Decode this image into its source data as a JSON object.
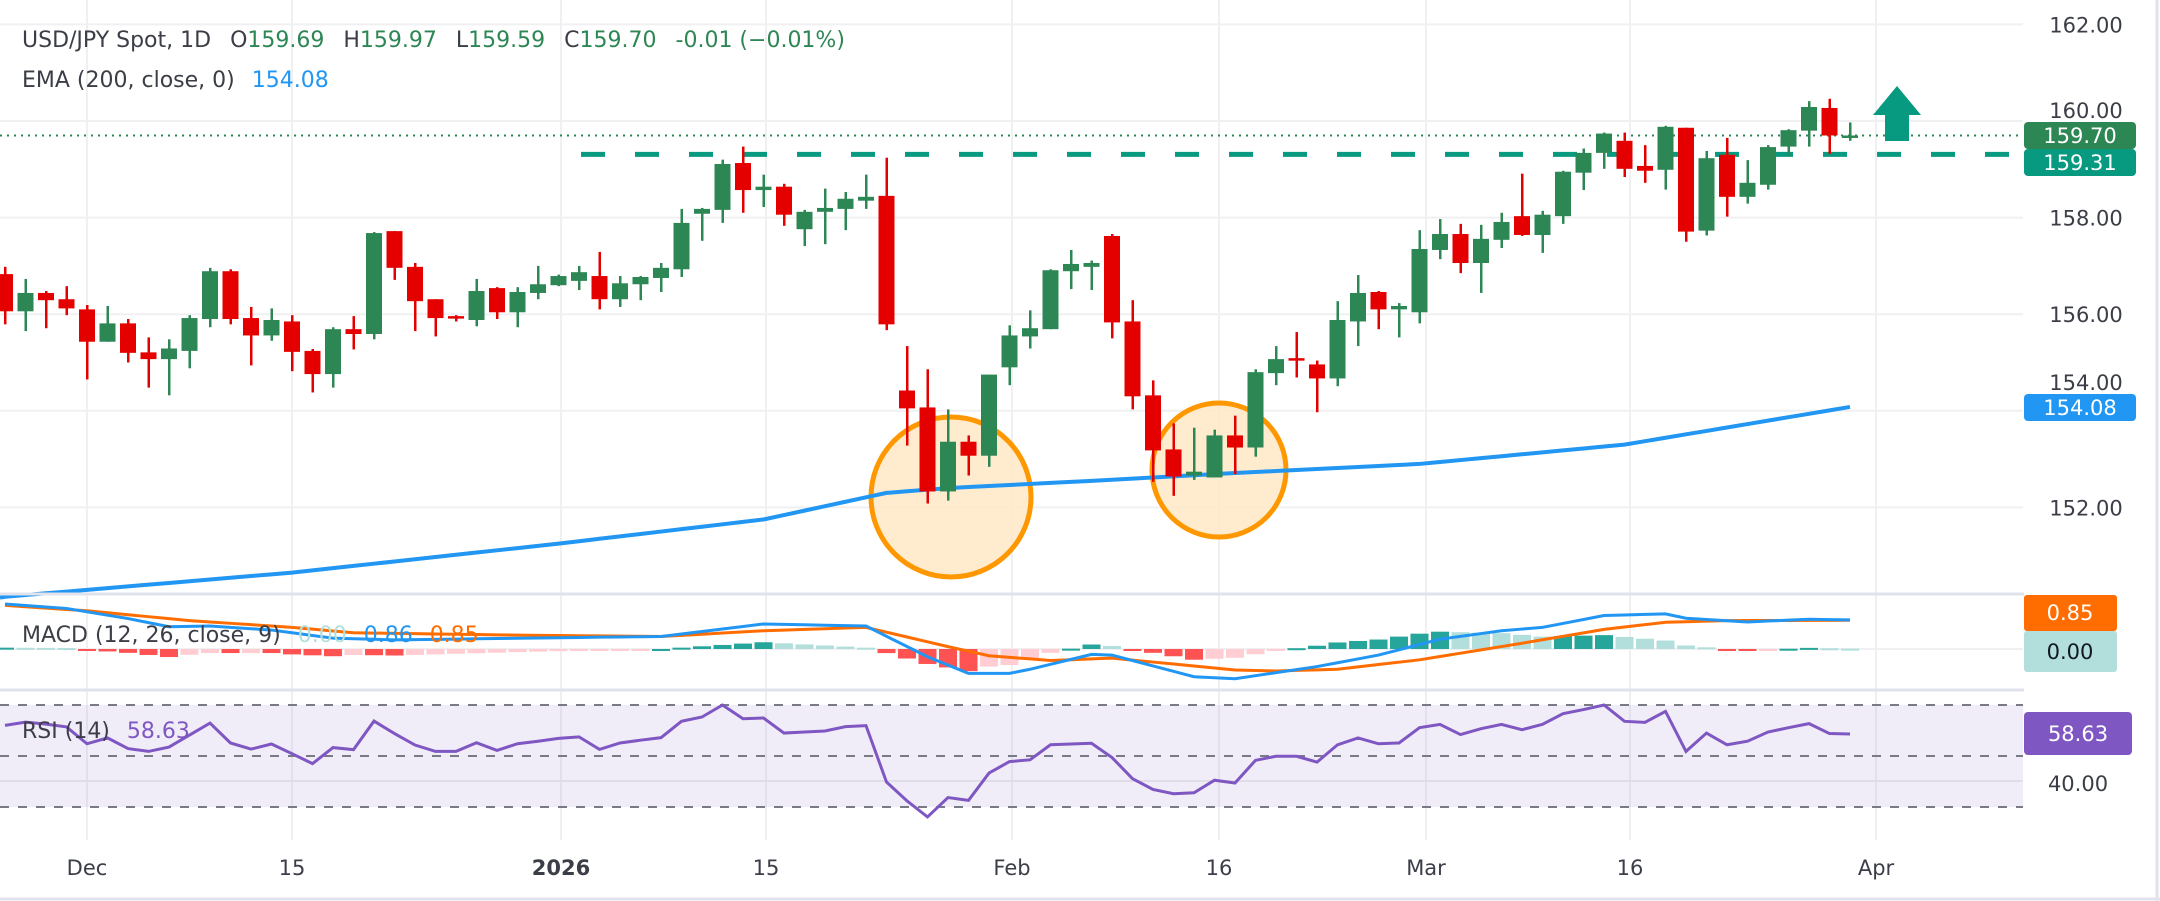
{
  "legend": {
    "symbol": "USD/JPY Spot, 1D",
    "o_label": "O",
    "o": "159.69",
    "h_label": "H",
    "h": "159.97",
    "l_label": "L",
    "l": "159.59",
    "c_label": "C",
    "c": "159.70",
    "change": "-0.01 (−0.01%)",
    "ema_label": "EMA (200, close, 0)",
    "ema_value": "154.08",
    "macd_label": "MACD (12, 26, close, 9)",
    "macd_hist": "0.00",
    "macd_line": "0.86",
    "macd_signal": "0.85",
    "rsi_label": "RSI (14)",
    "rsi_value": "58.63"
  },
  "colors": {
    "up": "#2d8754",
    "down": "#e50000",
    "ema": "#2196f3",
    "level": "#089981",
    "circle": "#ff9800",
    "macd": "#2196f3",
    "signal": "#ff6d00",
    "rsi": "#7e57c2",
    "hist_up_strong": "#26a69a",
    "hist_up_weak": "#b2dfdb",
    "hist_down_strong": "#ff5252",
    "hist_down_weak": "#ffcdd2"
  },
  "price_axis": {
    "ticks": [
      "162.00",
      "160.00",
      "158.00",
      "156.00",
      "154.00",
      "152.00"
    ],
    "last_price": "159.70",
    "level": "159.31",
    "ema": "154.08"
  },
  "macd_axis": {
    "signal": "0.85",
    "hist": "0.00"
  },
  "rsi_axis": {
    "tick": "40.00",
    "value": "58.63"
  },
  "time_axis": [
    "Dec",
    "15",
    "2026",
    "15",
    "Feb",
    "16",
    "Mar",
    "16",
    "Apr"
  ],
  "chart_data": {
    "type": "candlestick",
    "symbol": "USD/JPY Spot",
    "interval": "1D",
    "ylim": [
      150.5,
      162.4
    ],
    "grid": true,
    "columns": [
      "date",
      "open",
      "high",
      "low",
      "close"
    ],
    "candles": [
      [
        "2025-11-25",
        156.83,
        156.98,
        155.79,
        156.06
      ],
      [
        "2025-11-26",
        156.06,
        156.73,
        155.65,
        156.44
      ],
      [
        "2025-11-27",
        156.44,
        156.48,
        155.71,
        156.29
      ],
      [
        "2025-11-28",
        156.31,
        156.58,
        155.98,
        156.12
      ],
      [
        "2025-12-01",
        156.1,
        156.19,
        154.65,
        155.43
      ],
      [
        "2025-12-02",
        155.43,
        156.17,
        155.43,
        155.81
      ],
      [
        "2025-12-03",
        155.81,
        155.9,
        155.0,
        155.2
      ],
      [
        "2025-12-04",
        155.21,
        155.52,
        154.48,
        155.07
      ],
      [
        "2025-12-05",
        155.07,
        155.48,
        154.32,
        155.29
      ],
      [
        "2025-12-08",
        155.24,
        155.98,
        154.88,
        155.92
      ],
      [
        "2025-12-09",
        155.9,
        156.96,
        155.73,
        156.89
      ],
      [
        "2025-12-10",
        156.89,
        156.93,
        155.79,
        155.9
      ],
      [
        "2025-12-11",
        155.92,
        156.15,
        154.94,
        155.56
      ],
      [
        "2025-12-12",
        155.56,
        156.12,
        155.45,
        155.88
      ],
      [
        "2025-12-15",
        155.85,
        155.98,
        154.82,
        155.22
      ],
      [
        "2025-12-16",
        155.24,
        155.28,
        154.38,
        154.76
      ],
      [
        "2025-12-17",
        154.76,
        155.73,
        154.48,
        155.69
      ],
      [
        "2025-12-18",
        155.69,
        155.96,
        155.27,
        155.59
      ],
      [
        "2025-12-19",
        155.59,
        157.7,
        155.48,
        157.68
      ],
      [
        "2025-12-22",
        157.72,
        157.72,
        156.71,
        156.96
      ],
      [
        "2025-12-23",
        156.98,
        157.06,
        155.65,
        156.27
      ],
      [
        "2025-12-24",
        156.31,
        156.31,
        155.54,
        155.92
      ],
      [
        "2025-12-25",
        155.96,
        155.98,
        155.85,
        155.92
      ],
      [
        "2025-12-26",
        155.88,
        156.73,
        155.75,
        156.48
      ],
      [
        "2025-12-29",
        156.54,
        156.56,
        155.9,
        156.04
      ],
      [
        "2025-12-30",
        156.04,
        156.56,
        155.73,
        156.46
      ],
      [
        "2025-12-31",
        156.44,
        157.0,
        156.31,
        156.62
      ],
      [
        "2026-01-01",
        156.6,
        156.82,
        156.58,
        156.79
      ],
      [
        "2026-01-02",
        156.69,
        157.0,
        156.5,
        156.87
      ],
      [
        "2026-01-05",
        156.79,
        157.29,
        156.1,
        156.31
      ],
      [
        "2026-01-06",
        156.31,
        156.79,
        156.15,
        156.64
      ],
      [
        "2026-01-07",
        156.62,
        156.79,
        156.29,
        156.77
      ],
      [
        "2026-01-08",
        156.75,
        157.06,
        156.46,
        156.96
      ],
      [
        "2026-01-09",
        156.93,
        158.18,
        156.77,
        157.89
      ],
      [
        "2026-01-12",
        158.08,
        158.2,
        157.52,
        158.18
      ],
      [
        "2026-01-13",
        158.16,
        159.2,
        157.89,
        159.11
      ],
      [
        "2026-01-14",
        159.13,
        159.47,
        158.1,
        158.57
      ],
      [
        "2026-01-15",
        158.57,
        158.89,
        158.22,
        158.64
      ],
      [
        "2026-01-16",
        158.64,
        158.7,
        157.83,
        158.06
      ],
      [
        "2026-01-19",
        157.76,
        158.16,
        157.41,
        158.12
      ],
      [
        "2026-01-20",
        158.12,
        158.6,
        157.45,
        158.2
      ],
      [
        "2026-01-21",
        158.18,
        158.53,
        157.74,
        158.39
      ],
      [
        "2026-01-22",
        158.35,
        158.89,
        158.18,
        158.43
      ],
      [
        "2026-01-23",
        158.45,
        159.24,
        155.67,
        155.79
      ],
      [
        "2026-01-26",
        154.42,
        155.34,
        153.28,
        154.05
      ],
      [
        "2026-01-27",
        154.07,
        154.86,
        152.08,
        152.33
      ],
      [
        "2026-01-28",
        152.33,
        154.03,
        152.14,
        153.36
      ],
      [
        "2026-01-29",
        153.36,
        153.49,
        152.66,
        153.07
      ],
      [
        "2026-01-30",
        153.07,
        154.75,
        152.84,
        154.75
      ],
      [
        "2026-02-02",
        154.9,
        155.77,
        154.53,
        155.56
      ],
      [
        "2026-02-03",
        155.54,
        156.08,
        155.29,
        155.71
      ],
      [
        "2026-02-04",
        155.69,
        156.93,
        155.69,
        156.91
      ],
      [
        "2026-02-05",
        156.89,
        157.33,
        156.52,
        157.04
      ],
      [
        "2026-02-06",
        156.98,
        157.11,
        156.5,
        157.06
      ],
      [
        "2026-02-09",
        157.62,
        157.66,
        155.5,
        155.83
      ],
      [
        "2026-02-10",
        155.85,
        156.29,
        154.03,
        154.3
      ],
      [
        "2026-02-11",
        154.32,
        154.63,
        152.53,
        153.18
      ],
      [
        "2026-02-12",
        153.2,
        153.74,
        152.24,
        152.64
      ],
      [
        "2026-02-13",
        152.66,
        153.65,
        152.57,
        152.74
      ],
      [
        "2026-02-16",
        152.62,
        153.61,
        152.62,
        153.49
      ],
      [
        "2026-02-17",
        153.49,
        153.9,
        152.69,
        153.24
      ],
      [
        "2026-02-18",
        153.24,
        154.86,
        153.05,
        154.8
      ],
      [
        "2026-02-19",
        154.78,
        155.34,
        154.53,
        155.07
      ],
      [
        "2026-02-20",
        155.09,
        155.63,
        154.69,
        155.04
      ],
      [
        "2026-02-23",
        154.96,
        155.04,
        153.97,
        154.67
      ],
      [
        "2026-02-24",
        154.67,
        156.27,
        154.51,
        155.88
      ],
      [
        "2026-02-25",
        155.85,
        156.81,
        155.34,
        156.44
      ],
      [
        "2026-02-26",
        156.46,
        156.48,
        155.69,
        156.1
      ],
      [
        "2026-02-27",
        156.1,
        156.23,
        155.52,
        156.17
      ],
      [
        "2026-03-02",
        156.04,
        157.74,
        155.81,
        157.35
      ],
      [
        "2026-03-03",
        157.33,
        157.97,
        157.14,
        157.66
      ],
      [
        "2026-03-04",
        157.66,
        157.87,
        156.85,
        157.06
      ],
      [
        "2026-03-05",
        157.06,
        157.85,
        156.44,
        157.56
      ],
      [
        "2026-03-06",
        157.54,
        158.1,
        157.37,
        157.91
      ],
      [
        "2026-03-09",
        158.03,
        158.91,
        157.62,
        157.64
      ],
      [
        "2026-03-10",
        157.64,
        158.14,
        157.27,
        158.06
      ],
      [
        "2026-03-11",
        158.03,
        158.97,
        157.87,
        158.95
      ],
      [
        "2026-03-12",
        158.93,
        159.43,
        158.57,
        159.34
      ],
      [
        "2026-03-13",
        159.34,
        159.76,
        159.01,
        159.74
      ],
      [
        "2026-03-16",
        159.59,
        159.76,
        158.84,
        159.01
      ],
      [
        "2026-03-17",
        159.07,
        159.5,
        158.72,
        158.97
      ],
      [
        "2026-03-18",
        158.99,
        159.9,
        158.58,
        159.88
      ],
      [
        "2026-03-19",
        159.86,
        159.86,
        157.5,
        157.71
      ],
      [
        "2026-03-20",
        157.73,
        159.38,
        157.63,
        159.23
      ],
      [
        "2026-03-23",
        159.3,
        159.65,
        158.02,
        158.43
      ],
      [
        "2026-03-24",
        158.43,
        159.19,
        158.29,
        158.72
      ],
      [
        "2026-03-25",
        158.68,
        159.5,
        158.58,
        159.46
      ],
      [
        "2026-03-26",
        159.47,
        159.83,
        159.28,
        159.81
      ],
      [
        "2026-03-27",
        159.8,
        160.41,
        159.47,
        160.29
      ],
      [
        "2026-03-30",
        160.27,
        160.46,
        159.32,
        159.7
      ],
      [
        "2026-03-31",
        159.69,
        159.97,
        159.59,
        159.7
      ]
    ],
    "ema200": {
      "name": "EMA (200, close, 0)",
      "points": [
        [
          "2025-11-25",
          150.15
        ],
        [
          "2025-12-15",
          150.65
        ],
        [
          "2026-01-01",
          151.25
        ],
        [
          "2026-01-15",
          151.75
        ],
        [
          "2026-01-23",
          152.3
        ],
        [
          "2026-01-28",
          152.4
        ],
        [
          "2026-02-06",
          152.55
        ],
        [
          "2026-02-16",
          152.69
        ],
        [
          "2026-03-02",
          152.9
        ],
        [
          "2026-03-16",
          153.3
        ],
        [
          "2026-03-31",
          154.08
        ]
      ]
    },
    "resistance_level": 159.31,
    "last_price": 159.7,
    "annotations": {
      "highlight_circles": [
        "2026-01-28",
        "2026-02-16"
      ],
      "arrow": "up"
    },
    "macd": {
      "params": "12, 26, close, 9",
      "macd_points": [
        [
          "2025-11-25",
          1.33
        ],
        [
          "2025-11-28",
          1.2
        ],
        [
          "2025-12-03",
          0.9
        ],
        [
          "2025-12-05",
          0.66
        ],
        [
          "2025-12-09",
          0.68
        ],
        [
          "2025-12-12",
          0.56
        ],
        [
          "2025-12-17",
          0.32
        ],
        [
          "2025-12-22",
          0.27
        ],
        [
          "2026-01-05",
          0.35
        ],
        [
          "2026-01-08",
          0.37
        ],
        [
          "2026-01-15",
          0.74
        ],
        [
          "2026-01-22",
          0.68
        ],
        [
          "2026-01-27",
          -0.23
        ],
        [
          "2026-01-29",
          -0.72
        ],
        [
          "2026-02-02",
          -0.72
        ],
        [
          "2026-02-03",
          -0.6
        ],
        [
          "2026-02-06",
          -0.16
        ],
        [
          "2026-02-09",
          -0.18
        ],
        [
          "2026-02-13",
          -0.82
        ],
        [
          "2026-02-17",
          -0.88
        ],
        [
          "2026-02-23",
          -0.52
        ],
        [
          "2026-02-26",
          -0.18
        ],
        [
          "2026-03-03",
          0.29
        ],
        [
          "2026-03-06",
          0.54
        ],
        [
          "2026-03-10",
          0.64
        ],
        [
          "2026-03-13",
          0.99
        ],
        [
          "2026-03-18",
          1.04
        ],
        [
          "2026-03-19",
          0.91
        ],
        [
          "2026-03-24",
          0.8
        ],
        [
          "2026-03-27",
          0.88
        ],
        [
          "2026-03-31",
          0.86
        ]
      ],
      "signal_points": [
        [
          "2025-11-25",
          1.29
        ],
        [
          "2025-12-01",
          1.13
        ],
        [
          "2025-12-08",
          0.84
        ],
        [
          "2025-12-15",
          0.64
        ],
        [
          "2025-12-18",
          0.48
        ],
        [
          "2025-12-30",
          0.41
        ],
        [
          "2026-01-08",
          0.37
        ],
        [
          "2026-01-15",
          0.54
        ],
        [
          "2026-01-22",
          0.64
        ],
        [
          "2026-01-28",
          0.07
        ],
        [
          "2026-01-30",
          -0.2
        ],
        [
          "2026-02-04",
          -0.34
        ],
        [
          "2026-02-09",
          -0.27
        ],
        [
          "2026-02-17",
          -0.62
        ],
        [
          "2026-02-19",
          -0.65
        ],
        [
          "2026-02-24",
          -0.6
        ],
        [
          "2026-03-02",
          -0.32
        ],
        [
          "2026-03-09",
          0.17
        ],
        [
          "2026-03-13",
          0.58
        ],
        [
          "2026-03-18",
          0.79
        ],
        [
          "2026-03-23",
          0.84
        ],
        [
          "2026-03-31",
          0.85
        ]
      ]
    },
    "rsi": {
      "period": 14,
      "levels": [
        70,
        50,
        30
      ],
      "values": [
        62.0,
        63.3,
        62.5,
        61.4,
        54.8,
        57.1,
        52.9,
        51.8,
        53.5,
        58.2,
        62.9,
        55.1,
        52.7,
        54.7,
        50.9,
        47.0,
        53.3,
        52.5,
        63.7,
        58.8,
        54.3,
        51.8,
        51.8,
        55.2,
        52.2,
        54.8,
        55.8,
        56.9,
        57.5,
        52.6,
        55.1,
        56.2,
        57.2,
        63.6,
        65.3,
        70.0,
        64.6,
        64.9,
        59.0,
        59.4,
        59.8,
        61.5,
        61.9,
        39.8,
        32.4,
        26.1,
        33.7,
        32.6,
        43.3,
        47.8,
        48.5,
        54.4,
        54.7,
        55.0,
        49.4,
        41.1,
        36.9,
        35.2,
        35.6,
        40.5,
        39.4,
        48.3,
        49.9,
        49.9,
        47.6,
        54.4,
        57.1,
        54.8,
        55.1,
        61.1,
        62.4,
        58.4,
        60.7,
        62.4,
        60.3,
        62.4,
        66.6,
        68.2,
        70.0,
        63.6,
        63.2,
        67.5,
        51.8,
        59.0,
        54.4,
        55.8,
        59.4,
        61.1,
        62.7,
        58.8,
        58.63
      ]
    }
  }
}
